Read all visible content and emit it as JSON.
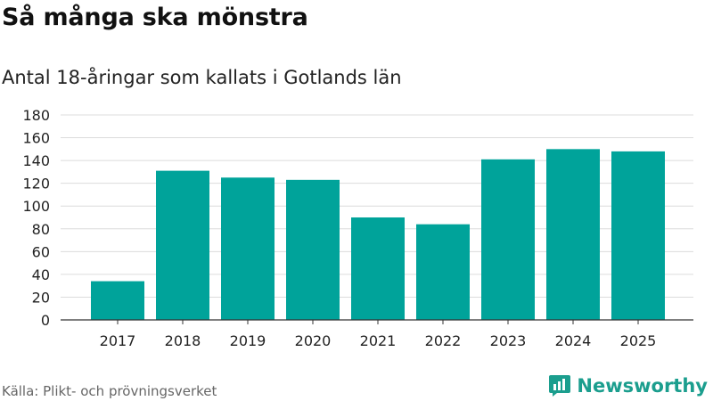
{
  "header": {
    "title": "Så många ska mönstra",
    "subtitle": "Antal 18-åringar som kallats i Gotlands län"
  },
  "footer": {
    "source": "Källa: Plikt- och prövningsverket",
    "brand": "Newsworthy"
  },
  "colors": {
    "bar": "#00a39a",
    "grid": "#dcdcdc",
    "axis": "#333333",
    "brand": "#1b9e8e"
  },
  "chart_data": {
    "type": "bar",
    "title": "Så många ska mönstra",
    "subtitle": "Antal 18-åringar som kallats i Gotlands län",
    "xlabel": "",
    "ylabel": "",
    "categories": [
      "2017",
      "2018",
      "2019",
      "2020",
      "2021",
      "2022",
      "2023",
      "2024",
      "2025"
    ],
    "values": [
      34,
      131,
      125,
      123,
      90,
      84,
      141,
      150,
      148
    ],
    "ylim": [
      0,
      180
    ],
    "yticks": [
      0,
      20,
      40,
      60,
      80,
      100,
      120,
      140,
      160,
      180
    ],
    "grid": true,
    "legend": "none"
  }
}
